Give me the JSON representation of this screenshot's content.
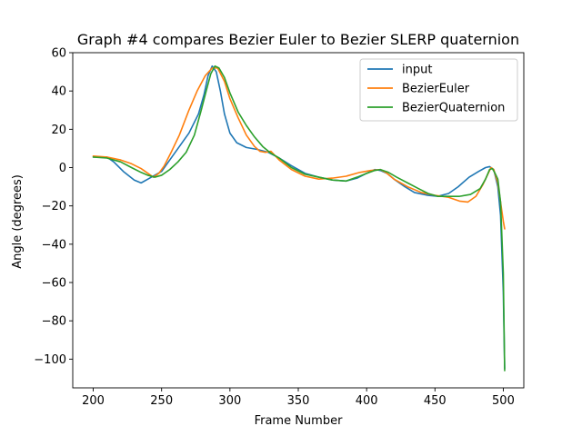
{
  "chart_data": {
    "type": "line",
    "title": "Graph #4 compares Bezier Euler to Bezier SLERP quaternion",
    "xlabel": "Frame Number",
    "ylabel": "Angle (degrees)",
    "xlim": [
      185,
      515
    ],
    "ylim": [
      -115,
      60
    ],
    "xticks": [
      200,
      250,
      300,
      350,
      400,
      450,
      500
    ],
    "yticks": [
      60,
      40,
      20,
      0,
      -20,
      -40,
      -60,
      -80,
      -100
    ],
    "xtick_labels": [
      "200",
      "250",
      "300",
      "350",
      "400",
      "450",
      "500"
    ],
    "ytick_labels": [
      "60",
      "40",
      "20",
      "0",
      "−20",
      "−40",
      "−60",
      "−80",
      "−100"
    ],
    "grid": false,
    "legend_position": "top-right",
    "series": [
      {
        "name": "input",
        "color": "#1f77b4",
        "points": [
          [
            200,
            5.5
          ],
          [
            210,
            5.5
          ],
          [
            215,
            3
          ],
          [
            222,
            -2
          ],
          [
            230,
            -6.5
          ],
          [
            235,
            -8
          ],
          [
            240,
            -6
          ],
          [
            245,
            -4
          ],
          [
            250,
            -2
          ],
          [
            255,
            3
          ],
          [
            262,
            10
          ],
          [
            270,
            18
          ],
          [
            277,
            28
          ],
          [
            281,
            38
          ],
          [
            284,
            48
          ],
          [
            287,
            53
          ],
          [
            290,
            50
          ],
          [
            293,
            40
          ],
          [
            296,
            28
          ],
          [
            300,
            18
          ],
          [
            305,
            13
          ],
          [
            312,
            10.5
          ],
          [
            320,
            9.5
          ],
          [
            328,
            8
          ],
          [
            336,
            5
          ],
          [
            345,
            1
          ],
          [
            355,
            -3
          ],
          [
            365,
            -5
          ],
          [
            375,
            -6.5
          ],
          [
            385,
            -7
          ],
          [
            393,
            -5.5
          ],
          [
            400,
            -3
          ],
          [
            406,
            -1
          ],
          [
            410,
            -1.5
          ],
          [
            415,
            -3
          ],
          [
            420,
            -6
          ],
          [
            428,
            -10
          ],
          [
            435,
            -13
          ],
          [
            445,
            -14.5
          ],
          [
            452,
            -15
          ],
          [
            460,
            -13.5
          ],
          [
            467,
            -10
          ],
          [
            475,
            -5
          ],
          [
            482,
            -2
          ],
          [
            487,
            0
          ],
          [
            490,
            0.5
          ],
          [
            493,
            -1
          ],
          [
            496,
            -10
          ],
          [
            498,
            -25
          ],
          [
            500,
            -65
          ],
          [
            501,
            -105
          ]
        ]
      },
      {
        "name": "BezierEuler",
        "color": "#ff7f0e",
        "points": [
          [
            200,
            6
          ],
          [
            210,
            5.5
          ],
          [
            220,
            4
          ],
          [
            228,
            2
          ],
          [
            235,
            -0.5
          ],
          [
            240,
            -3
          ],
          [
            244,
            -5
          ],
          [
            248,
            -3
          ],
          [
            252,
            1
          ],
          [
            257,
            8
          ],
          [
            263,
            17
          ],
          [
            270,
            30
          ],
          [
            276,
            40
          ],
          [
            282,
            48
          ],
          [
            287,
            52
          ],
          [
            291,
            52
          ],
          [
            296,
            45
          ],
          [
            300,
            36
          ],
          [
            306,
            26
          ],
          [
            312,
            17
          ],
          [
            318,
            11
          ],
          [
            322,
            8.5
          ],
          [
            326,
            8
          ],
          [
            330,
            8.5
          ],
          [
            336,
            4
          ],
          [
            345,
            -1
          ],
          [
            355,
            -4.5
          ],
          [
            365,
            -6
          ],
          [
            375,
            -5.5
          ],
          [
            385,
            -4.5
          ],
          [
            395,
            -2.5
          ],
          [
            403,
            -1.5
          ],
          [
            410,
            -1
          ],
          [
            414,
            -2.5
          ],
          [
            420,
            -6
          ],
          [
            430,
            -10
          ],
          [
            440,
            -13
          ],
          [
            450,
            -14.5
          ],
          [
            460,
            -15.5
          ],
          [
            468,
            -17.5
          ],
          [
            474,
            -18
          ],
          [
            480,
            -15
          ],
          [
            485,
            -9
          ],
          [
            489,
            -3
          ],
          [
            491,
            0
          ],
          [
            493,
            -1
          ],
          [
            496,
            -8
          ],
          [
            498,
            -18
          ],
          [
            500,
            -28
          ],
          [
            501,
            -32
          ]
        ]
      },
      {
        "name": "BezierQuaternion",
        "color": "#2ca02c",
        "points": [
          [
            200,
            5.5
          ],
          [
            210,
            5
          ],
          [
            220,
            3
          ],
          [
            228,
            0
          ],
          [
            235,
            -2.5
          ],
          [
            240,
            -4
          ],
          [
            245,
            -5
          ],
          [
            250,
            -4
          ],
          [
            256,
            -1
          ],
          [
            262,
            3
          ],
          [
            268,
            8
          ],
          [
            274,
            17
          ],
          [
            279,
            30
          ],
          [
            283,
            41
          ],
          [
            286,
            49
          ],
          [
            289,
            53
          ],
          [
            292,
            52
          ],
          [
            296,
            47
          ],
          [
            300,
            39
          ],
          [
            306,
            29
          ],
          [
            312,
            22
          ],
          [
            318,
            16
          ],
          [
            324,
            11
          ],
          [
            330,
            7.5
          ],
          [
            336,
            5
          ],
          [
            345,
            0
          ],
          [
            355,
            -3.5
          ],
          [
            365,
            -5
          ],
          [
            375,
            -6.5
          ],
          [
            385,
            -7
          ],
          [
            393,
            -5
          ],
          [
            400,
            -3
          ],
          [
            406,
            -1.5
          ],
          [
            410,
            -1
          ],
          [
            416,
            -2.5
          ],
          [
            422,
            -5
          ],
          [
            430,
            -8
          ],
          [
            438,
            -11
          ],
          [
            445,
            -13.5
          ],
          [
            452,
            -15
          ],
          [
            460,
            -15
          ],
          [
            468,
            -15
          ],
          [
            476,
            -14
          ],
          [
            483,
            -11
          ],
          [
            487,
            -6
          ],
          [
            490,
            -1
          ],
          [
            492,
            -0.5
          ],
          [
            494,
            -3
          ],
          [
            496,
            -6
          ],
          [
            498,
            -18
          ],
          [
            500,
            -55
          ],
          [
            501,
            -106
          ]
        ]
      }
    ]
  }
}
